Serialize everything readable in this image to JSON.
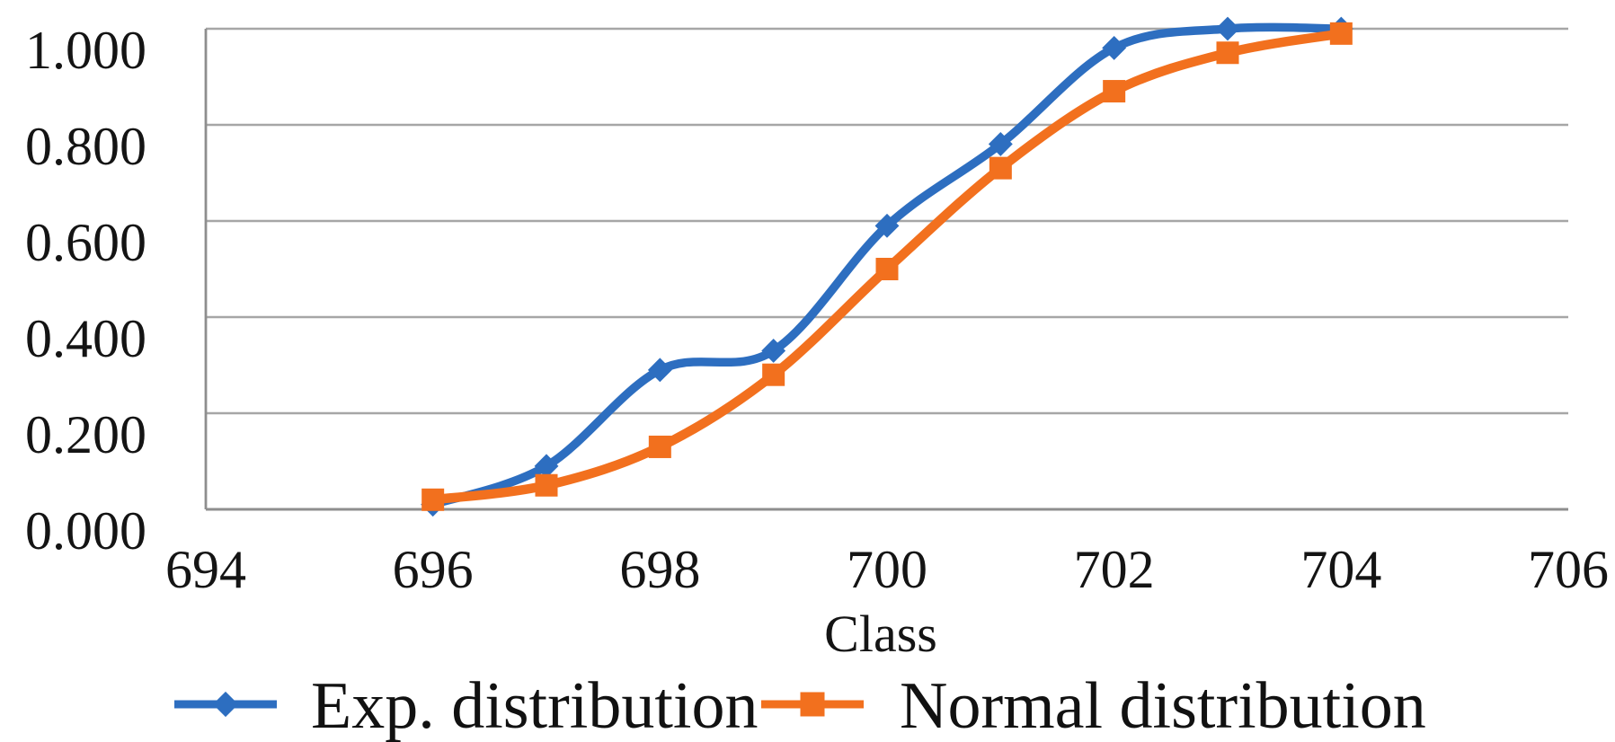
{
  "chart_data": {
    "type": "line",
    "title": "",
    "xlabel": "Class",
    "ylabel": "",
    "x": [
      696,
      697,
      698,
      699,
      700,
      701,
      702,
      703,
      704
    ],
    "series": [
      {
        "name": "Exp. distribution",
        "color": "#2d6ec0",
        "marker": "diamond",
        "values": [
          0.01,
          0.09,
          0.29,
          0.33,
          0.59,
          0.76,
          0.96,
          1.0,
          1.0
        ]
      },
      {
        "name": "Normal distribution",
        "color": "#f2701e",
        "marker": "square",
        "values": [
          0.02,
          0.05,
          0.13,
          0.28,
          0.5,
          0.71,
          0.87,
          0.95,
          0.99
        ]
      }
    ],
    "xlim": [
      694,
      706
    ],
    "ylim": [
      0,
      1
    ],
    "x_ticks": [
      "694",
      "696",
      "698",
      "700",
      "702",
      "704",
      "706"
    ],
    "x_tick_values": [
      694,
      696,
      698,
      700,
      702,
      704,
      706
    ],
    "y_ticks": [
      "0.000",
      "0.200",
      "0.400",
      "0.600",
      "0.800",
      "1.000"
    ],
    "y_tick_values": [
      0,
      0.2,
      0.4,
      0.6,
      0.8,
      1.0
    ],
    "grid": "horizontal",
    "smooth_lines": true,
    "legend_position": "bottom"
  },
  "colors": {
    "background": "#ffffff",
    "gridline": "#a6a6a6",
    "axis": "#8e8e8e",
    "tick_text": "#141414"
  }
}
